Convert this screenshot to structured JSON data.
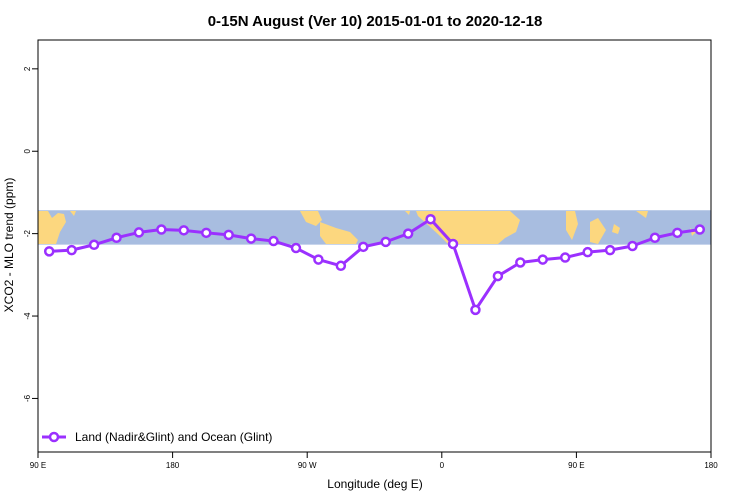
{
  "chart_data": {
    "type": "line",
    "title": "0-15N August (Ver 10)   2015-01-01 to 2020-12-18",
    "xlabel": "Longitude (deg E)",
    "ylabel": "XCO2 - MLO trend (ppm)",
    "x_ticks": [
      "90 E",
      "180",
      "90 W",
      "0",
      "90 E",
      "180"
    ],
    "x_tick_positions": [
      90,
      180,
      270,
      360,
      450,
      540
    ],
    "xlim": [
      90,
      540
    ],
    "y_ticks": [
      "2",
      "0",
      "-2",
      "-4",
      "-6"
    ],
    "y_tick_values": [
      2,
      0,
      -2,
      -4,
      -6
    ],
    "ylim": [
      -7.3,
      2.7
    ],
    "grid": false,
    "legend_position": "bottom-left",
    "background_map": "world map band (0-15N) with ocean in light blue and land in light yellow",
    "map_lat_range": [
      0,
      15
    ],
    "colors": {
      "line": "#9b30ff",
      "ocean": "#a8bde0",
      "land": "#fcd77f"
    },
    "series": [
      {
        "name": "Land (Nadir&Glint) and Ocean (Glint)",
        "x": [
          97.5,
          112.5,
          127.5,
          142.5,
          157.5,
          172.5,
          187.5,
          202.5,
          217.5,
          232.5,
          247.5,
          262.5,
          277.5,
          292.5,
          307.5,
          322.5,
          337.5,
          352.5,
          367.5,
          382.5,
          397.5,
          412.5,
          427.5,
          442.5,
          457.5,
          472.5,
          487.5,
          502.5,
          517.5,
          532.5
        ],
        "y": [
          -2.43,
          -2.4,
          -2.27,
          -2.1,
          -1.97,
          -1.9,
          -1.92,
          -1.98,
          -2.03,
          -2.12,
          -2.18,
          -2.35,
          -2.63,
          -2.78,
          -2.32,
          -2.2,
          -2.0,
          -1.65,
          -2.25,
          -3.85,
          -3.03,
          -2.7,
          -2.63,
          -2.58,
          -2.45,
          -2.4,
          -2.3,
          -2.1,
          -1.98,
          -1.9
        ]
      }
    ]
  }
}
